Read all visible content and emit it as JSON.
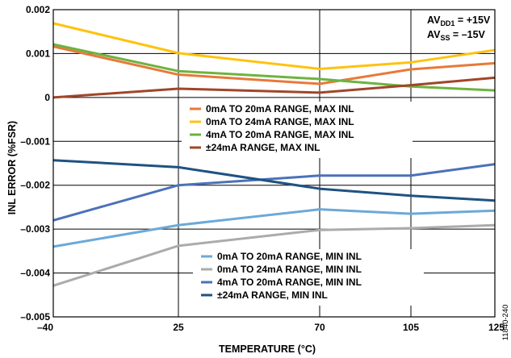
{
  "chart_data": {
    "type": "line",
    "xlabel": "TEMPERATURE (°C)",
    "ylabel": "INL ERROR (%FSR)",
    "x": [
      -40,
      25,
      70,
      105,
      125
    ],
    "x_tick_labels": [
      "–40",
      "25",
      "70",
      "105",
      "125"
    ],
    "y_ticks": [
      0.002,
      0.001,
      0,
      -0.001,
      -0.002,
      -0.003,
      -0.004,
      -0.005
    ],
    "y_tick_labels": [
      "0.002",
      "0.001",
      "0",
      "–0.001",
      "–0.002",
      "–0.003",
      "–0.004",
      "–0.005"
    ],
    "xlim": [
      -40,
      125
    ],
    "ylim": [
      -0.005,
      0.002
    ],
    "grid": true,
    "supply_note": {
      "line1": {
        "prefix": "AV",
        "sub": "DD1",
        "suffix": " = +15V"
      },
      "line2": {
        "prefix": "AV",
        "sub": "SS",
        "suffix": " = –15V"
      }
    },
    "figure_id": "11840-240",
    "legend_top": [
      "0mA TO 20mA RANGE, MAX INL",
      "0mA TO 24mA RANGE, MAX INL",
      "4mA TO 20mA RANGE, MAX INL",
      "±24mA RANGE, MAX INL"
    ],
    "legend_bottom": [
      "0mA TO 20mA RANGE, MIN INL",
      "0mA TO 24mA RANGE, MIN INL",
      "4mA TO 20mA RANGE, MIN INL",
      "±24mA RANGE, MIN INL"
    ],
    "series": [
      {
        "name": "0mA TO 20mA RANGE, MAX INL",
        "color": "#E8793A",
        "values": [
          0.00116,
          0.00052,
          0.00031,
          0.00064,
          0.00078
        ]
      },
      {
        "name": "0mA TO 24mA RANGE, MAX INL",
        "color": "#FFC20E",
        "values": [
          0.00169,
          0.00101,
          0.00065,
          0.0008,
          0.00108
        ]
      },
      {
        "name": "4mA TO 20mA RANGE, MAX INL",
        "color": "#6DB33F",
        "values": [
          0.00121,
          0.0006,
          0.00042,
          0.00025,
          0.00016
        ]
      },
      {
        "name": "±24mA RANGE, MAX INL",
        "color": "#A0462A",
        "values": [
          0.0,
          0.0002,
          0.00011,
          0.00028,
          0.00045
        ]
      },
      {
        "name": "0mA TO 20mA RANGE, MIN INL",
        "color": "#6CA9D8",
        "values": [
          -0.0034,
          -0.00291,
          -0.00255,
          -0.00265,
          -0.00258
        ]
      },
      {
        "name": "0mA TO 24mA RANGE, MIN INL",
        "color": "#ABABAB",
        "values": [
          -0.00429,
          -0.00338,
          -0.00302,
          -0.00298,
          -0.00291
        ]
      },
      {
        "name": "4mA TO 20mA RANGE, MIN INL",
        "color": "#4A72B8",
        "values": [
          -0.0028,
          -0.002,
          -0.00178,
          -0.00178,
          -0.00152
        ]
      },
      {
        "name": "±24mA RANGE, MIN INL",
        "color": "#1F5281",
        "values": [
          -0.00143,
          -0.00159,
          -0.00208,
          -0.00224,
          -0.00235
        ]
      }
    ]
  }
}
